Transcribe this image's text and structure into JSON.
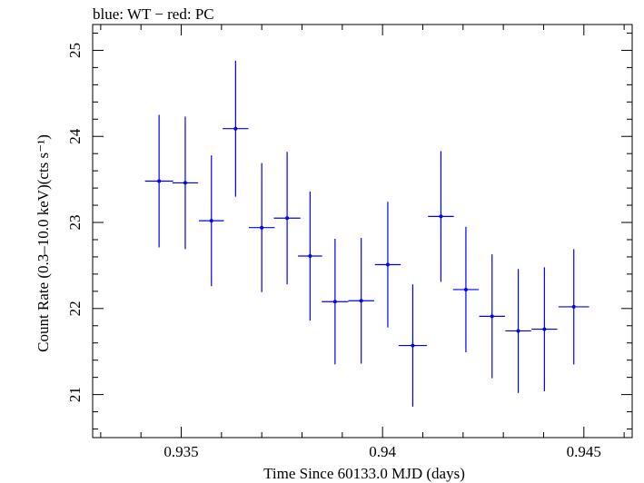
{
  "chart_data": {
    "type": "scatter",
    "title": "blue: WT − red: PC",
    "xlabel": "Time Since 60133.0 MJD (days)",
    "ylabel": "Count Rate (0.3–10.0 keV)(cts s⁻¹)",
    "xlim": [
      0.9328,
      0.9462
    ],
    "ylim": [
      20.5,
      25.3
    ],
    "xticks": [
      0.935,
      0.94,
      0.945
    ],
    "xtick_labels": [
      "0.935",
      "0.94",
      "0.945"
    ],
    "yticks": [
      21,
      22,
      23,
      24,
      25
    ],
    "ytick_labels": [
      "21",
      "22",
      "23",
      "24",
      "25"
    ],
    "grid": false,
    "series": [
      {
        "color": "#0000ff",
        "points": [
          {
            "x": 0.93445,
            "xerr": 0.00035,
            "y": 23.48,
            "yerr": 0.77
          },
          {
            "x": 0.9351,
            "xerr": 0.00032,
            "y": 23.46,
            "yerr": 0.77
          },
          {
            "x": 0.93575,
            "xerr": 0.00031,
            "y": 23.02,
            "yerr": 0.76
          },
          {
            "x": 0.93635,
            "xerr": 0.00032,
            "y": 24.09,
            "yerr": 0.79
          },
          {
            "x": 0.937,
            "xerr": 0.00032,
            "y": 22.94,
            "yerr": 0.75
          },
          {
            "x": 0.93763,
            "xerr": 0.00033,
            "y": 23.05,
            "yerr": 0.77
          },
          {
            "x": 0.9382,
            "xerr": 0.0003,
            "y": 22.61,
            "yerr": 0.75
          },
          {
            "x": 0.93882,
            "xerr": 0.00033,
            "y": 22.08,
            "yerr": 0.73
          },
          {
            "x": 0.93947,
            "xerr": 0.00032,
            "y": 22.09,
            "yerr": 0.73
          },
          {
            "x": 0.94013,
            "xerr": 0.00032,
            "y": 22.51,
            "yerr": 0.73
          },
          {
            "x": 0.94075,
            "xerr": 0.00035,
            "y": 21.57,
            "yerr": 0.71
          },
          {
            "x": 0.94145,
            "xerr": 0.00032,
            "y": 23.07,
            "yerr": 0.76
          },
          {
            "x": 0.94207,
            "xerr": 0.00032,
            "y": 22.22,
            "yerr": 0.73
          },
          {
            "x": 0.94272,
            "xerr": 0.00032,
            "y": 21.91,
            "yerr": 0.72
          },
          {
            "x": 0.94337,
            "xerr": 0.00032,
            "y": 21.74,
            "yerr": 0.72
          },
          {
            "x": 0.94402,
            "xerr": 0.00032,
            "y": 21.76,
            "yerr": 0.72
          },
          {
            "x": 0.94475,
            "xerr": 0.00038,
            "y": 22.02,
            "yerr": 0.67
          }
        ]
      }
    ]
  }
}
